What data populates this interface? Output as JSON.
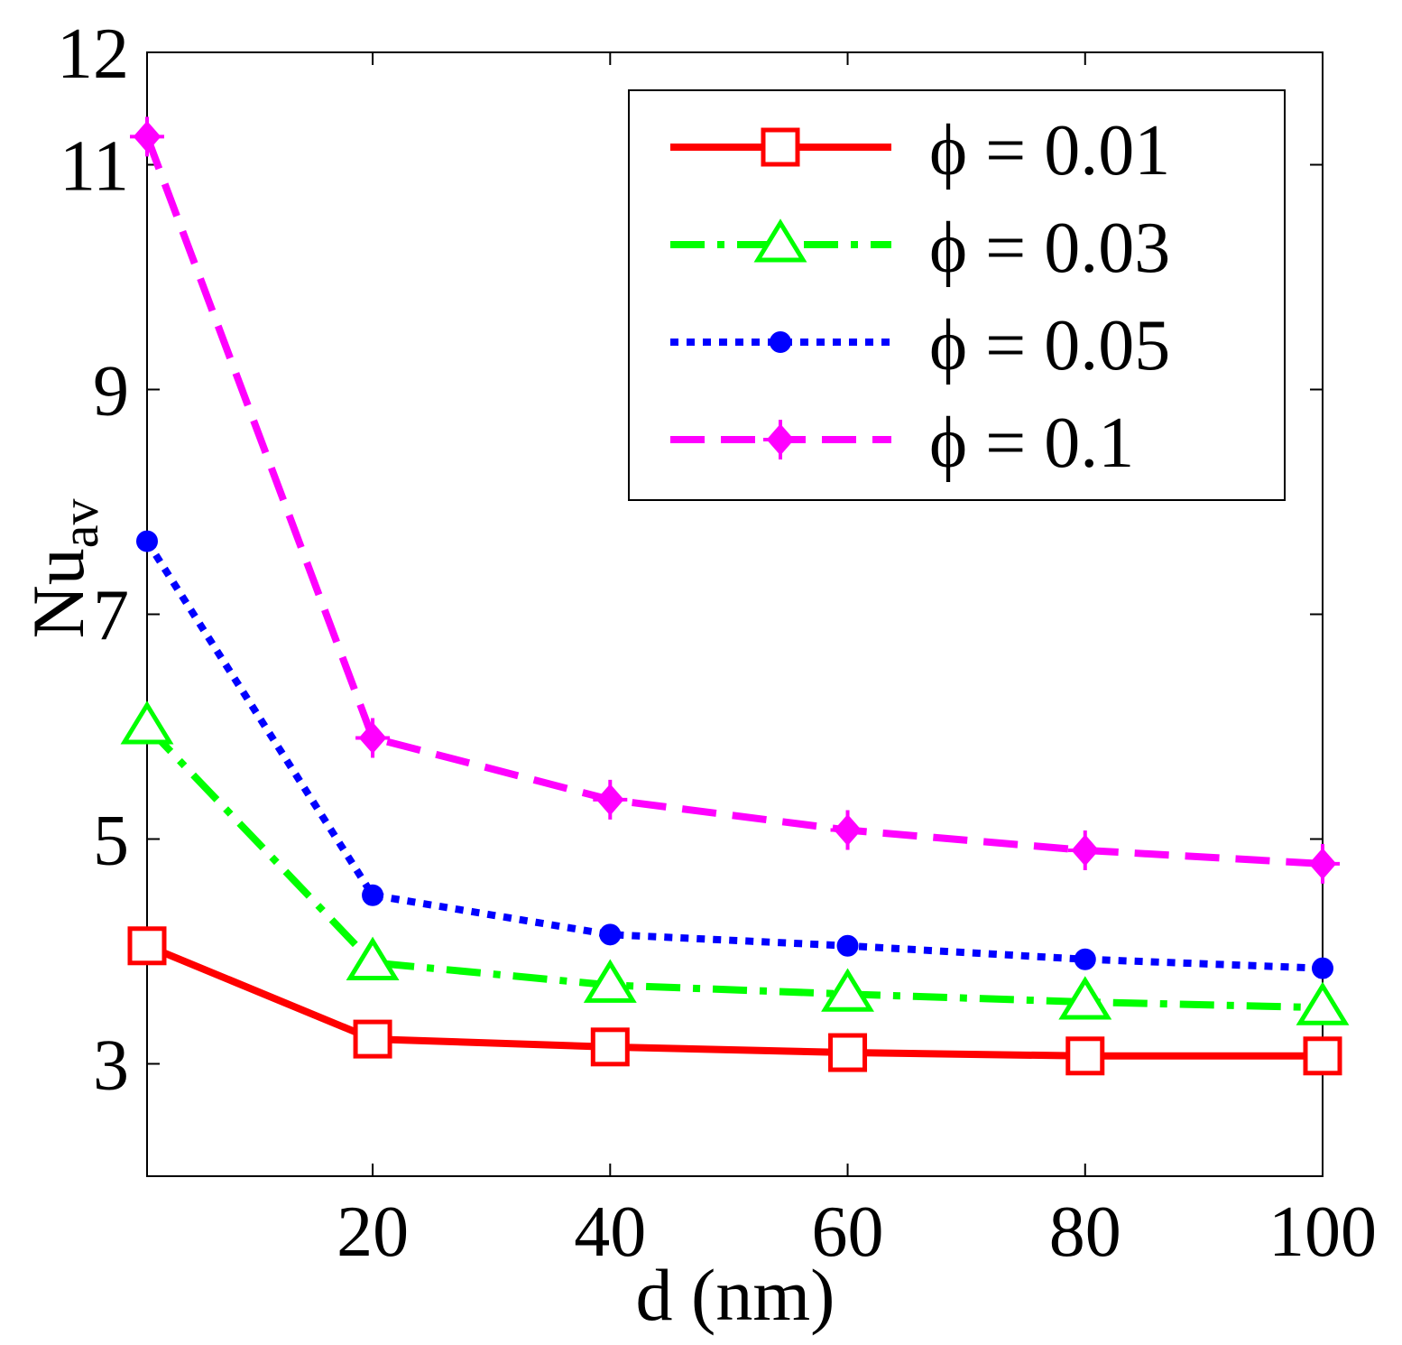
{
  "chart_data": {
    "type": "line",
    "xlabel": "d (nm)",
    "ylabel": "Nu",
    "ylabel_sub": "av",
    "xlim": [
      1,
      100
    ],
    "ylim": [
      2,
      12
    ],
    "xticks": [
      20,
      40,
      60,
      80,
      100
    ],
    "xtick_labels": [
      "20",
      "40",
      "60",
      "80",
      "100"
    ],
    "yticks": [
      3,
      5,
      7,
      9,
      11,
      12
    ],
    "ytick_labels": [
      "3",
      "5",
      "7",
      "9",
      "11",
      "12"
    ],
    "legend_position": "top-right",
    "x": [
      1,
      20,
      40,
      60,
      80,
      100
    ],
    "series": [
      {
        "name": "ϕ = 0.01",
        "color": "#ff0000",
        "marker": "square",
        "dash": "solid",
        "values": [
          4.05,
          3.22,
          3.15,
          3.1,
          3.07,
          3.07
        ]
      },
      {
        "name": "ϕ = 0.03",
        "color": "#00ff00",
        "marker": "triangle",
        "dash": "dashdot",
        "values": [
          6.0,
          3.9,
          3.7,
          3.62,
          3.55,
          3.5
        ]
      },
      {
        "name": "ϕ = 0.05",
        "color": "#0000ff",
        "marker": "dot",
        "dash": "dotted",
        "values": [
          7.65,
          4.5,
          4.15,
          4.05,
          3.93,
          3.85
        ]
      },
      {
        "name": "ϕ = 0.1",
        "color": "#ff00ff",
        "marker": "diamond",
        "dash": "dashed",
        "values": [
          11.25,
          5.9,
          5.35,
          5.08,
          4.9,
          4.78
        ]
      }
    ]
  }
}
